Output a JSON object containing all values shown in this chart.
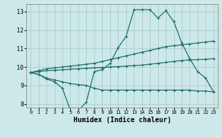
{
  "xlabel": "Humidex (Indice chaleur)",
  "xlim": [
    -0.5,
    23.5
  ],
  "ylim": [
    7.8,
    13.4
  ],
  "yticks": [
    8,
    9,
    10,
    11,
    12,
    13
  ],
  "xticks": [
    0,
    1,
    2,
    3,
    4,
    5,
    6,
    7,
    8,
    9,
    10,
    11,
    12,
    13,
    14,
    15,
    16,
    17,
    18,
    19,
    20,
    21,
    22,
    23
  ],
  "bg_color": "#cce8e8",
  "line_color": "#1a6b6b",
  "grid_color": "#aacccc",
  "curve1_y": [
    9.7,
    9.6,
    9.35,
    9.2,
    8.85,
    7.65,
    7.65,
    8.1,
    9.75,
    9.85,
    10.2,
    11.05,
    11.65,
    13.1,
    13.1,
    13.1,
    12.65,
    13.05,
    12.45,
    11.3,
    10.45,
    9.75,
    9.4,
    8.65
  ],
  "curve2_y": [
    9.7,
    9.8,
    9.9,
    9.95,
    10.0,
    10.05,
    10.1,
    10.15,
    10.2,
    10.3,
    10.4,
    10.5,
    10.6,
    10.7,
    10.8,
    10.9,
    11.0,
    11.1,
    11.15,
    11.2,
    11.25,
    11.3,
    11.35,
    11.4
  ],
  "curve3_y": [
    9.7,
    9.75,
    9.8,
    9.82,
    9.85,
    9.88,
    9.9,
    9.93,
    9.95,
    9.97,
    10.0,
    10.02,
    10.05,
    10.08,
    10.1,
    10.15,
    10.2,
    10.25,
    10.3,
    10.35,
    10.38,
    10.4,
    10.42,
    10.45
  ],
  "curve4_y": [
    9.7,
    9.6,
    9.4,
    9.3,
    9.2,
    9.1,
    9.05,
    9.0,
    8.85,
    8.75,
    8.75,
    8.75,
    8.75,
    8.75,
    8.75,
    8.75,
    8.75,
    8.75,
    8.75,
    8.75,
    8.75,
    8.7,
    8.7,
    8.65
  ]
}
